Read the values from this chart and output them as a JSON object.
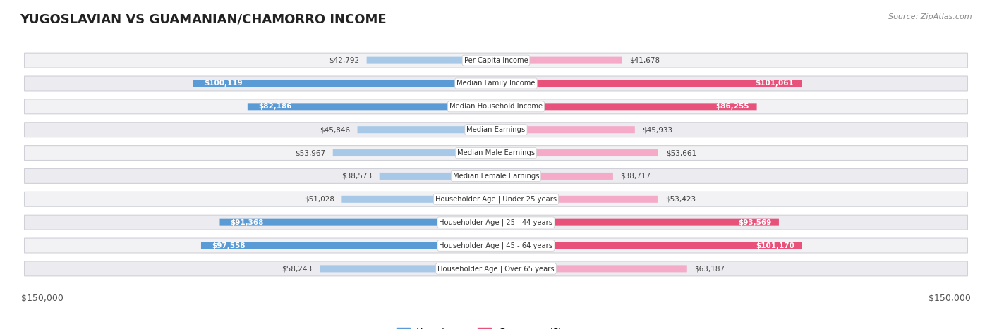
{
  "title": "YUGOSLAVIAN VS GUAMANIAN/CHAMORRO INCOME",
  "source": "Source: ZipAtlas.com",
  "categories": [
    "Per Capita Income",
    "Median Family Income",
    "Median Household Income",
    "Median Earnings",
    "Median Male Earnings",
    "Median Female Earnings",
    "Householder Age | Under 25 years",
    "Householder Age | 25 - 44 years",
    "Householder Age | 45 - 64 years",
    "Householder Age | Over 65 years"
  ],
  "yugoslavian_values": [
    42792,
    100119,
    82186,
    45846,
    53967,
    38573,
    51028,
    91368,
    97558,
    58243
  ],
  "guamanian_values": [
    41678,
    101061,
    86255,
    45933,
    53661,
    38717,
    53423,
    93569,
    101170,
    63187
  ],
  "yugoslavian_labels": [
    "$42,792",
    "$100,119",
    "$82,186",
    "$45,846",
    "$53,967",
    "$38,573",
    "$51,028",
    "$91,368",
    "$97,558",
    "$58,243"
  ],
  "guamanian_labels": [
    "$41,678",
    "$101,061",
    "$86,255",
    "$45,933",
    "$53,661",
    "$38,717",
    "$53,423",
    "$93,569",
    "$101,170",
    "$63,187"
  ],
  "yugoslav_color_light": "#a8c8e8",
  "yugoslav_color_dark": "#5b9bd5",
  "guamanian_color_light": "#f5aac8",
  "guamanian_color_dark": "#e8527a",
  "max_value": 150000,
  "background_color": "#ffffff",
  "row_bg_even": "#f2f2f5",
  "row_bg_odd": "#ebebf0",
  "legend_yugoslav": "Yugoslavian",
  "legend_guamanian": "Guamanian/Chamorro",
  "dark_threshold": 75000
}
